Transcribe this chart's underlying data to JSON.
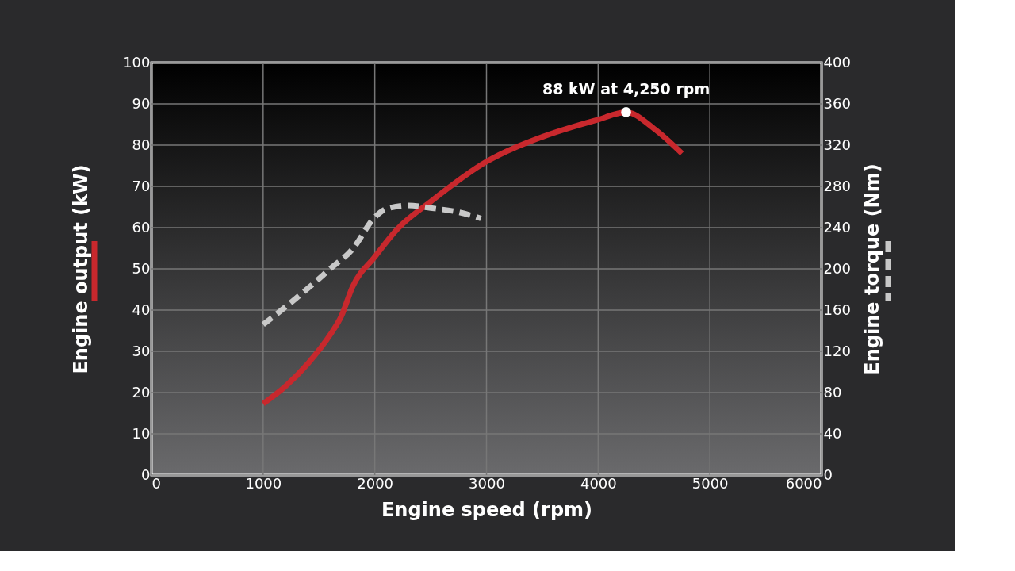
{
  "chart_data": {
    "type": "line",
    "xlabel": "Engine speed (rpm)",
    "ylabel": "Engine output (kW)",
    "y2label": "Engine torque (Nm)",
    "xlim": [
      0,
      6000
    ],
    "xticks": [
      0,
      1000,
      2000,
      3000,
      4000,
      5000,
      6000
    ],
    "ylim": [
      0,
      100
    ],
    "yticks": [
      0,
      10,
      20,
      30,
      40,
      50,
      60,
      70,
      80,
      90,
      100
    ],
    "y2lim": [
      0,
      400
    ],
    "y2ticks": [
      0,
      40,
      80,
      120,
      160,
      200,
      240,
      280,
      320,
      360,
      400
    ],
    "grid": true,
    "annotations": [
      {
        "text": "88 kW at 4,250 rpm",
        "x": 4250,
        "y": 88
      }
    ],
    "series": [
      {
        "color": "#c8282d",
        "line_style": "solid",
        "x": [
          1000,
          1200,
          1400,
          1600,
          1700,
          1800,
          2000,
          2200,
          2500,
          3000,
          3500,
          4000,
          4250,
          4500,
          4750
        ],
        "values": [
          17.3,
          21.5,
          27,
          34,
          38.5,
          45.6,
          52.9,
          59.6,
          66.3,
          76,
          82,
          86.2,
          88,
          84,
          78
        ]
      },
      {
        "color": "#c8c8c8",
        "line_style": "dashed",
        "axis": "y2",
        "x": [
          1000,
          1200,
          1400,
          1600,
          1800,
          2000,
          2100,
          2300,
          2500,
          2750,
          2950
        ],
        "values": [
          146,
          163,
          181,
          200,
          219,
          250,
          258,
          261.5,
          259,
          255,
          249
        ]
      }
    ]
  }
}
